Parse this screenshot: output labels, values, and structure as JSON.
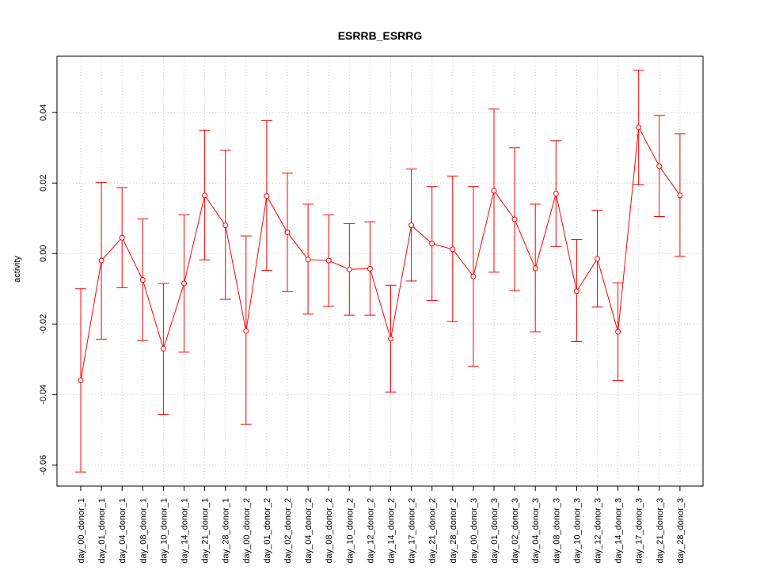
{
  "chart_data": {
    "type": "line",
    "title": "ESRRB_ESRRG",
    "xlabel": "",
    "ylabel": "activity",
    "ylim": [
      -0.066,
      0.056
    ],
    "yticks": [
      -0.06,
      -0.04,
      -0.02,
      0.0,
      0.02,
      0.04
    ],
    "ytick_labels": [
      "-0.06",
      "-0.04",
      "-0.02",
      "0.00",
      "0.02",
      "0.04"
    ],
    "grid": true,
    "series_color": "#ff0000",
    "grid_color": "#c8c8c8",
    "categories": [
      "day_00_donor_1",
      "day_01_donor_1",
      "day_04_donor_1",
      "day_08_donor_1",
      "day_10_donor_1",
      "day_14_donor_1",
      "day_21_donor_1",
      "day_28_donor_1",
      "day_00_donor_2",
      "day_01_donor_2",
      "day_02_donor_2",
      "day_04_donor_2",
      "day_08_donor_2",
      "day_10_donor_2",
      "day_12_donor_2",
      "day_14_donor_2",
      "day_17_donor_2",
      "day_21_donor_2",
      "day_28_donor_2",
      "day_00_donor_3",
      "day_01_donor_3",
      "day_02_donor_3",
      "day_04_donor_3",
      "day_08_donor_3",
      "day_10_donor_3",
      "day_12_donor_3",
      "day_14_donor_3",
      "day_17_donor_3",
      "day_21_donor_3",
      "day_28_donor_3"
    ],
    "values": [
      -0.036,
      -0.002,
      0.0045,
      -0.0075,
      -0.027,
      -0.0085,
      0.0165,
      0.008,
      -0.022,
      0.0163,
      0.006,
      -0.0017,
      -0.002,
      -0.0045,
      -0.0043,
      -0.0242,
      0.008,
      0.0028,
      0.0012,
      -0.0065,
      0.0178,
      0.0097,
      -0.0042,
      0.017,
      -0.0107,
      -0.0015,
      -0.0222,
      0.0358,
      0.0248,
      0.0165
    ],
    "error_upper": [
      -0.01,
      0.0202,
      0.0187,
      0.0098,
      -0.0085,
      0.011,
      0.035,
      0.0293,
      0.005,
      0.0377,
      0.0228,
      0.014,
      0.011,
      0.0085,
      0.009,
      -0.009,
      0.024,
      0.019,
      0.022,
      0.019,
      0.041,
      0.03,
      0.014,
      0.032,
      0.004,
      0.0123,
      -0.0083,
      0.052,
      0.0392,
      0.034
    ],
    "error_lower": [
      -0.062,
      -0.0243,
      -0.0097,
      -0.0247,
      -0.0457,
      -0.028,
      -0.0018,
      -0.013,
      -0.0485,
      -0.0048,
      -0.0108,
      -0.0172,
      -0.015,
      -0.0175,
      -0.0175,
      -0.0393,
      -0.0078,
      -0.0133,
      -0.0193,
      -0.032,
      -0.0053,
      -0.0105,
      -0.0222,
      0.002,
      -0.025,
      -0.0152,
      -0.036,
      0.0195,
      0.0105,
      -0.0008
    ]
  }
}
